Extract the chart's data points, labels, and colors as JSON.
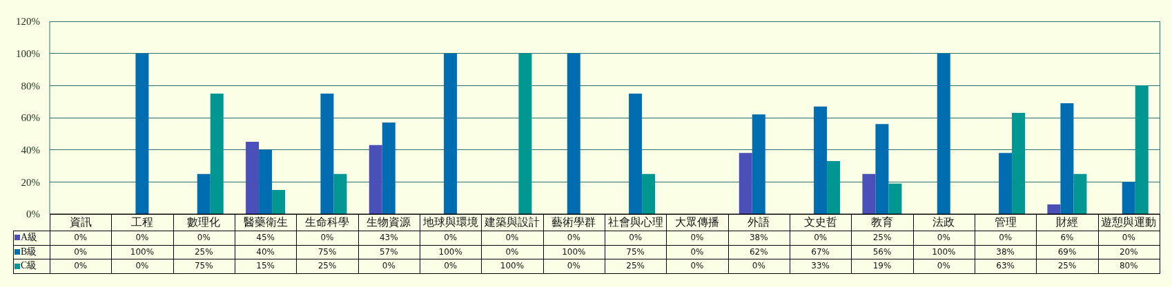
{
  "chart_data": {
    "type": "bar",
    "categories": [
      "資訊",
      "工程",
      "數理化",
      "醫藥衛生",
      "生命科學",
      "生物資源",
      "地球與環境",
      "建築與設計",
      "藝術學群",
      "社會與心理",
      "大眾傳播",
      "外語",
      "文史哲",
      "教育",
      "法政",
      "管理",
      "財經",
      "遊憩與運動"
    ],
    "series": [
      {
        "name": "A級",
        "color": "#4a50b8",
        "values": [
          0,
          0,
          0,
          45,
          0,
          43,
          0,
          0,
          0,
          0,
          0,
          38,
          0,
          25,
          0,
          0,
          6,
          0
        ],
        "value_labels": [
          "0%",
          "0%",
          "0%",
          "45%",
          "0%",
          "43%",
          "0%",
          "0%",
          "0%",
          "0%",
          "0%",
          "38%",
          "0%",
          "25%",
          "0%",
          "0%",
          "6%",
          "0%"
        ]
      },
      {
        "name": "B級",
        "color": "#006db0",
        "values": [
          0,
          100,
          25,
          40,
          75,
          57,
          100,
          0,
          100,
          75,
          0,
          62,
          67,
          56,
          100,
          38,
          69,
          20
        ],
        "value_labels": [
          "0%",
          "100%",
          "25%",
          "40%",
          "75%",
          "57%",
          "100%",
          "0%",
          "100%",
          "75%",
          "0%",
          "62%",
          "67%",
          "56%",
          "100%",
          "38%",
          "69%",
          "20%"
        ]
      },
      {
        "name": "C級",
        "color": "#009692",
        "values": [
          0,
          0,
          75,
          15,
          25,
          0,
          0,
          100,
          0,
          25,
          0,
          0,
          33,
          19,
          0,
          63,
          25,
          80
        ],
        "value_labels": [
          "0%",
          "0%",
          "75%",
          "15%",
          "25%",
          "0%",
          "0%",
          "100%",
          "0%",
          "25%",
          "0%",
          "0%",
          "33%",
          "19%",
          "0%",
          "63%",
          "25%",
          "80%"
        ]
      }
    ],
    "ylim": [
      0,
      120
    ],
    "yticks": [
      {
        "value": 0,
        "label": "0%"
      },
      {
        "value": 20,
        "label": "20%"
      },
      {
        "value": 40,
        "label": "40%"
      },
      {
        "value": 60,
        "label": "60%"
      },
      {
        "value": 80,
        "label": "80%"
      },
      {
        "value": 100,
        "label": "100%"
      },
      {
        "value": 120,
        "label": "120%"
      }
    ],
    "grid": "y",
    "legend": "bottom left"
  }
}
